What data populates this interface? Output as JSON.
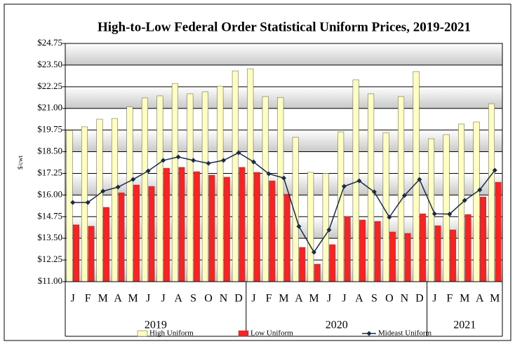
{
  "chart_data": {
    "type": "bar-line",
    "title": "High-to-Low Federal Order Statistical Uniform Prices, 2019-2021",
    "ylabel": "$/cwt",
    "years": [
      {
        "label": "2019",
        "months": [
          "J",
          "F",
          "M",
          "A",
          "M",
          "J",
          "J",
          "A",
          "S",
          "O",
          "N",
          "D"
        ]
      },
      {
        "label": "2020",
        "months": [
          "J",
          "F",
          "M",
          "A",
          "M",
          "J",
          "J",
          "A",
          "S",
          "O",
          "N",
          "D"
        ]
      },
      {
        "label": "2021",
        "months": [
          "J",
          "F",
          "M",
          "A",
          "M"
        ]
      }
    ],
    "ylim": [
      11.0,
      24.75
    ],
    "yticks": [
      {
        "value": 11.0,
        "label": "$11.00"
      },
      {
        "value": 12.25,
        "label": "$12.25"
      },
      {
        "value": 13.5,
        "label": "$13.50"
      },
      {
        "value": 14.75,
        "label": "$14.75"
      },
      {
        "value": 16.0,
        "label": "$16.00"
      },
      {
        "value": 17.25,
        "label": "$17.25"
      },
      {
        "value": 18.5,
        "label": "$18.50"
      },
      {
        "value": 19.75,
        "label": "$19.75"
      },
      {
        "value": 21.0,
        "label": "$21.00"
      },
      {
        "value": 22.25,
        "label": "$22.25"
      },
      {
        "value": 23.5,
        "label": "$23.50"
      },
      {
        "value": 24.75,
        "label": "$24.75"
      }
    ],
    "grid": true,
    "series": [
      {
        "name": "High Uniform",
        "kind": "bar",
        "color": "#ffffc0",
        "values": [
          19.73,
          19.94,
          20.38,
          20.42,
          21.1,
          21.6,
          21.72,
          22.44,
          21.84,
          21.96,
          22.28,
          23.17,
          23.29,
          21.68,
          21.63,
          19.33,
          17.31,
          17.25,
          19.65,
          22.65,
          21.84,
          19.6,
          21.68,
          23.13,
          19.25,
          19.49,
          20.1,
          20.22,
          21.27
        ]
      },
      {
        "name": "Low Uniform",
        "kind": "bar",
        "color": "#ff2020",
        "values": [
          14.28,
          14.2,
          15.29,
          16.13,
          16.58,
          16.5,
          17.55,
          17.6,
          17.35,
          17.15,
          17.03,
          17.6,
          17.31,
          16.82,
          16.05,
          12.98,
          12.01,
          13.14,
          14.76,
          14.56,
          14.48,
          13.87,
          13.79,
          14.92,
          14.23,
          13.99,
          14.88,
          15.89,
          16.74
        ]
      },
      {
        "name": "Mideast Uniform",
        "kind": "line",
        "color": "#1a2a4a",
        "values": [
          15.57,
          15.57,
          16.22,
          16.46,
          16.9,
          17.39,
          18.0,
          18.2,
          18.0,
          17.83,
          18.0,
          18.44,
          17.91,
          17.23,
          16.98,
          14.19,
          12.7,
          13.99,
          16.5,
          16.82,
          16.18,
          14.72,
          15.97,
          16.9,
          14.92,
          14.9,
          15.69,
          16.3,
          17.43
        ]
      }
    ]
  }
}
